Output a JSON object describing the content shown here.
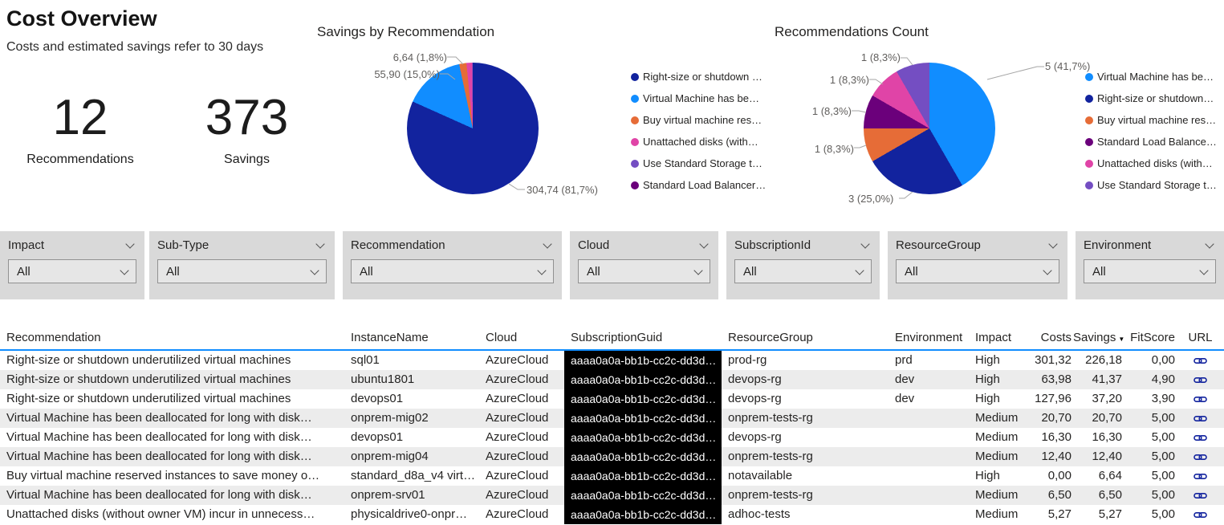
{
  "page": {
    "title": "Cost Overview",
    "subtitle": "Costs and estimated savings refer to 30 days"
  },
  "kpis": [
    {
      "value": "12",
      "label": "Recommendations"
    },
    {
      "value": "373",
      "label": "Savings"
    }
  ],
  "colors": {
    "blue": "#118DFF",
    "navy": "#12239E",
    "orange": "#E66C37",
    "pink": "#E044A7",
    "light_purple": "#744EC2",
    "dark_purple": "#6B007B",
    "link": "#12239E",
    "header_line": "#118DFF",
    "filter_bg": "#d9d9d9",
    "row_alt": "#ececec",
    "guid_cell_bg": "#000000"
  },
  "chart_data": [
    {
      "type": "pie",
      "title": "Savings by Recommendation",
      "legend_position": "right",
      "total": 373,
      "series": [
        {
          "label": "Right-size or shutdown …",
          "value": 304.74,
          "pct": 81.7,
          "callout": "304,74 (81,7%)",
          "color": "#12239E"
        },
        {
          "label": "Virtual Machine has be…",
          "value": 55.9,
          "pct": 15.0,
          "callout": "55,90 (15,0%)",
          "color": "#118DFF"
        },
        {
          "label": "Buy virtual machine res…",
          "value": 6.64,
          "pct": 1.8,
          "callout": "6,64 (1,8%)",
          "color": "#E66C37"
        },
        {
          "label": "Unattached disks (with…",
          "value": 5.27,
          "pct": 1.4,
          "callout": null,
          "color": "#E044A7"
        },
        {
          "label": "Use Standard Storage t…",
          "value": 0.3,
          "pct": 0.1,
          "callout": null,
          "color": "#744EC2"
        },
        {
          "label": "Standard Load Balancer…",
          "value": 0.15,
          "pct": 0.0,
          "callout": null,
          "color": "#6B007B"
        }
      ]
    },
    {
      "type": "pie",
      "title": "Recommendations Count",
      "legend_position": "right",
      "total": 12,
      "series": [
        {
          "label": "Virtual Machine has be…",
          "value": 5,
          "pct": 41.7,
          "callout": "5 (41,7%)",
          "color": "#118DFF"
        },
        {
          "label": "Right-size or shutdown…",
          "value": 3,
          "pct": 25.0,
          "callout": "3 (25,0%)",
          "color": "#12239E"
        },
        {
          "label": "Buy virtual machine res…",
          "value": 1,
          "pct": 8.3,
          "callout": "1 (8,3%)",
          "color": "#E66C37"
        },
        {
          "label": "Standard Load Balance…",
          "value": 1,
          "pct": 8.3,
          "callout": "1 (8,3%)",
          "color": "#6B007B"
        },
        {
          "label": "Unattached disks (with…",
          "value": 1,
          "pct": 8.3,
          "callout": "1 (8,3%)",
          "color": "#E044A7"
        },
        {
          "label": "Use Standard Storage t…",
          "value": 1,
          "pct": 8.3,
          "callout": "1 (8,3%)",
          "color": "#744EC2"
        }
      ]
    }
  ],
  "filters": [
    {
      "label": "Impact",
      "value": "All"
    },
    {
      "label": "Sub-Type",
      "value": "All"
    },
    {
      "label": "Recommendation",
      "value": "All"
    },
    {
      "label": "Cloud",
      "value": "All"
    },
    {
      "label": "SubscriptionId",
      "value": "All"
    },
    {
      "label": "ResourceGroup",
      "value": "All"
    },
    {
      "label": "Environment",
      "value": "All"
    }
  ],
  "table": {
    "columns": [
      "Recommendation",
      "InstanceName",
      "Cloud",
      "SubscriptionGuid",
      "ResourceGroup",
      "Environment",
      "Impact",
      "Costs",
      "Savings",
      "FitScore",
      "URL"
    ],
    "sort": {
      "column": "Savings",
      "direction": "desc"
    },
    "rows": [
      [
        "Right-size or shutdown underutilized virtual machines",
        "sql01",
        "AzureCloud",
        "aaaa0a0a-bb1b-cc2c-dd3d…",
        "prod-rg",
        "prd",
        "High",
        "301,32",
        "226,18",
        "0,00"
      ],
      [
        "Right-size or shutdown underutilized virtual machines",
        "ubuntu1801",
        "AzureCloud",
        "aaaa0a0a-bb1b-cc2c-dd3d…",
        "devops-rg",
        "dev",
        "High",
        "63,98",
        "41,37",
        "4,90"
      ],
      [
        "Right-size or shutdown underutilized virtual machines",
        "devops01",
        "AzureCloud",
        "aaaa0a0a-bb1b-cc2c-dd3d…",
        "devops-rg",
        "dev",
        "High",
        "127,96",
        "37,20",
        "3,90"
      ],
      [
        "Virtual Machine has been deallocated for long with disk…",
        "onprem-mig02",
        "AzureCloud",
        "aaaa0a0a-bb1b-cc2c-dd3d…",
        "onprem-tests-rg",
        "",
        "Medium",
        "20,70",
        "20,70",
        "5,00"
      ],
      [
        "Virtual Machine has been deallocated for long with disk…",
        "devops01",
        "AzureCloud",
        "aaaa0a0a-bb1b-cc2c-dd3d…",
        "devops-rg",
        "",
        "Medium",
        "16,30",
        "16,30",
        "5,00"
      ],
      [
        "Virtual Machine has been deallocated for long with disk…",
        "onprem-mig04",
        "AzureCloud",
        "aaaa0a0a-bb1b-cc2c-dd3d…",
        "onprem-tests-rg",
        "",
        "Medium",
        "12,40",
        "12,40",
        "5,00"
      ],
      [
        "Buy virtual machine reserved instances to save money o…",
        "standard_d8a_v4 virt…",
        "AzureCloud",
        "aaaa0a0a-bb1b-cc2c-dd3d…",
        "notavailable",
        "",
        "High",
        "0,00",
        "6,64",
        "5,00"
      ],
      [
        "Virtual Machine has been deallocated for long with disk…",
        "onprem-srv01",
        "AzureCloud",
        "aaaa0a0a-bb1b-cc2c-dd3d…",
        "onprem-tests-rg",
        "",
        "Medium",
        "6,50",
        "6,50",
        "5,00"
      ],
      [
        "Unattached disks (without owner VM) incur in unnecess…",
        "physicaldrive0-onpr…",
        "AzureCloud",
        "aaaa0a0a-bb1b-cc2c-dd3d…",
        "adhoc-tests",
        "",
        "Medium",
        "5,27",
        "5,27",
        "5,00"
      ]
    ]
  }
}
